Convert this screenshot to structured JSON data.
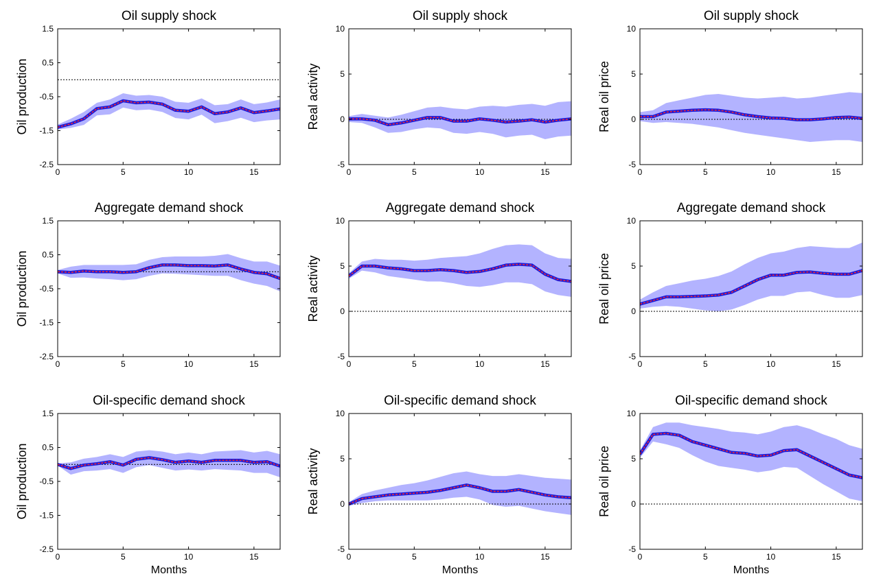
{
  "figure": {
    "type": "impulse-response-grid"
  },
  "colors": {
    "band": "#b3b3ff",
    "line_outer": "#1a1adb",
    "line_inner": "#ff2a2a",
    "axis": "#000000",
    "zero_line": "#000000"
  },
  "chart_data": [
    {
      "type": "area",
      "title": "Oil supply shock",
      "ylabel": "Oil production",
      "xlabel": "",
      "ylim": [
        -2.5,
        1.5
      ],
      "yticks": [
        "1.5",
        "0.5",
        "-0.5",
        "-1.5",
        "-2.5"
      ],
      "yticks_values": [
        1.5,
        0.5,
        -0.5,
        -1.5,
        -2.5
      ],
      "xlim": [
        0,
        17
      ],
      "xticks": [
        "0",
        "5",
        "10",
        "15"
      ],
      "xticks_values": [
        0,
        5,
        10,
        15
      ],
      "zero_line": 0,
      "x": [
        0,
        1,
        2,
        3,
        4,
        5,
        6,
        7,
        8,
        9,
        10,
        11,
        12,
        13,
        14,
        15,
        16,
        17
      ],
      "median": [
        -1.4,
        -1.3,
        -1.15,
        -0.85,
        -0.8,
        -0.62,
        -0.68,
        -0.66,
        -0.72,
        -0.9,
        -0.93,
        -0.8,
        -1.0,
        -0.95,
        -0.83,
        -0.97,
        -0.92,
        -0.86
      ],
      "upper": [
        -1.32,
        -1.15,
        -0.95,
        -0.68,
        -0.58,
        -0.4,
        -0.47,
        -0.45,
        -0.5,
        -0.65,
        -0.68,
        -0.55,
        -0.75,
        -0.72,
        -0.58,
        -0.72,
        -0.67,
        -0.58
      ],
      "lower": [
        -1.47,
        -1.42,
        -1.33,
        -1.05,
        -1.02,
        -0.82,
        -0.9,
        -0.88,
        -0.95,
        -1.13,
        -1.17,
        -1.03,
        -1.28,
        -1.22,
        -1.12,
        -1.25,
        -1.2,
        -1.17
      ]
    },
    {
      "type": "area",
      "title": "Oil supply shock",
      "ylabel": "Real activity",
      "xlabel": "",
      "ylim": [
        -5,
        10
      ],
      "yticks": [
        "10",
        "5",
        "0",
        "-5"
      ],
      "yticks_values": [
        10,
        5,
        0,
        -5
      ],
      "xlim": [
        0,
        17
      ],
      "xticks": [
        "0",
        "5",
        "10",
        "15"
      ],
      "xticks_values": [
        0,
        5,
        10,
        15
      ],
      "zero_line": 0,
      "x": [
        0,
        1,
        2,
        3,
        4,
        5,
        6,
        7,
        8,
        9,
        10,
        11,
        12,
        13,
        14,
        15,
        16,
        17
      ],
      "median": [
        0.05,
        0.05,
        -0.1,
        -0.6,
        -0.4,
        -0.1,
        0.2,
        0.2,
        -0.2,
        -0.2,
        0.05,
        -0.1,
        -0.3,
        -0.2,
        -0.05,
        -0.3,
        -0.1,
        0.05
      ],
      "upper": [
        0.35,
        0.6,
        0.4,
        0.2,
        0.5,
        0.9,
        1.3,
        1.4,
        1.2,
        1.1,
        1.4,
        1.5,
        1.4,
        1.6,
        1.7,
        1.5,
        1.9,
        2.0
      ],
      "lower": [
        -0.3,
        -0.4,
        -0.9,
        -1.5,
        -1.4,
        -1.1,
        -0.9,
        -1.0,
        -1.5,
        -1.6,
        -1.4,
        -1.6,
        -2.0,
        -1.8,
        -1.7,
        -2.2,
        -1.9,
        -1.8
      ]
    },
    {
      "type": "area",
      "title": "Oil supply shock",
      "ylabel": "Real oil price",
      "xlabel": "",
      "ylim": [
        -5,
        10
      ],
      "yticks": [
        "10",
        "5",
        "0",
        "-5"
      ],
      "yticks_values": [
        10,
        5,
        0,
        -5
      ],
      "xlim": [
        0,
        17
      ],
      "xticks": [
        "0",
        "5",
        "10",
        "15"
      ],
      "xticks_values": [
        0,
        5,
        10,
        15
      ],
      "zero_line": 0,
      "x": [
        0,
        1,
        2,
        3,
        4,
        5,
        6,
        7,
        8,
        9,
        10,
        11,
        12,
        13,
        14,
        15,
        16,
        17
      ],
      "median": [
        0.3,
        0.3,
        0.8,
        0.9,
        1.0,
        1.05,
        1.0,
        0.8,
        0.5,
        0.3,
        0.15,
        0.1,
        -0.05,
        -0.05,
        0.05,
        0.2,
        0.25,
        0.1
      ],
      "upper": [
        0.8,
        1.0,
        1.8,
        2.1,
        2.4,
        2.7,
        2.8,
        2.6,
        2.4,
        2.3,
        2.4,
        2.5,
        2.3,
        2.4,
        2.6,
        2.8,
        3.0,
        2.9
      ],
      "lower": [
        -0.2,
        -0.4,
        -0.3,
        -0.4,
        -0.5,
        -0.7,
        -0.9,
        -1.2,
        -1.5,
        -1.7,
        -1.9,
        -2.1,
        -2.3,
        -2.5,
        -2.4,
        -2.3,
        -2.3,
        -2.5
      ]
    },
    {
      "type": "area",
      "title": "Aggregate demand shock",
      "ylabel": "Oil production",
      "xlabel": "",
      "ylim": [
        -2.5,
        1.5
      ],
      "yticks": [
        "1.5",
        "0.5",
        "-0.5",
        "-1.5",
        "-2.5"
      ],
      "yticks_values": [
        1.5,
        0.5,
        -0.5,
        -1.5,
        -2.5
      ],
      "xlim": [
        0,
        17
      ],
      "xticks": [
        "0",
        "5",
        "10",
        "15"
      ],
      "xticks_values": [
        0,
        5,
        10,
        15
      ],
      "zero_line": 0,
      "x": [
        0,
        1,
        2,
        3,
        4,
        5,
        6,
        7,
        8,
        9,
        10,
        11,
        12,
        13,
        14,
        15,
        16,
        17
      ],
      "median": [
        0.0,
        -0.02,
        0.02,
        0.0,
        0.0,
        -0.02,
        0.0,
        0.12,
        0.2,
        0.2,
        0.18,
        0.18,
        0.17,
        0.2,
        0.08,
        -0.02,
        -0.06,
        -0.2
      ],
      "upper": [
        0.05,
        0.15,
        0.2,
        0.2,
        0.2,
        0.2,
        0.22,
        0.35,
        0.43,
        0.45,
        0.45,
        0.45,
        0.47,
        0.52,
        0.4,
        0.3,
        0.3,
        0.18
      ],
      "lower": [
        -0.05,
        -0.18,
        -0.17,
        -0.2,
        -0.22,
        -0.25,
        -0.22,
        -0.12,
        -0.05,
        -0.06,
        -0.08,
        -0.1,
        -0.12,
        -0.12,
        -0.25,
        -0.35,
        -0.42,
        -0.58
      ]
    },
    {
      "type": "area",
      "title": "Aggregate demand shock",
      "ylabel": "Real activity",
      "xlabel": "",
      "ylim": [
        -5,
        10
      ],
      "yticks": [
        "10",
        "5",
        "0",
        "-5"
      ],
      "yticks_values": [
        10,
        5,
        0,
        -5
      ],
      "xlim": [
        0,
        17
      ],
      "xticks": [
        "0",
        "5",
        "10",
        "15"
      ],
      "xticks_values": [
        0,
        5,
        10,
        15
      ],
      "zero_line": 0,
      "x": [
        0,
        1,
        2,
        3,
        4,
        5,
        6,
        7,
        8,
        9,
        10,
        11,
        12,
        13,
        14,
        15,
        16,
        17
      ],
      "median": [
        3.9,
        5.0,
        5.0,
        4.8,
        4.7,
        4.5,
        4.5,
        4.6,
        4.5,
        4.3,
        4.4,
        4.7,
        5.1,
        5.2,
        5.1,
        4.1,
        3.5,
        3.3
      ],
      "upper": [
        4.2,
        5.5,
        5.8,
        5.7,
        5.7,
        5.6,
        5.7,
        5.9,
        6.0,
        6.1,
        6.4,
        6.9,
        7.3,
        7.4,
        7.3,
        6.4,
        5.9,
        5.8
      ],
      "lower": [
        3.6,
        4.5,
        4.3,
        3.9,
        3.7,
        3.5,
        3.3,
        3.3,
        3.1,
        2.8,
        2.7,
        2.9,
        3.2,
        3.2,
        3.0,
        2.2,
        1.8,
        1.6
      ]
    },
    {
      "type": "area",
      "title": "Aggregate demand shock",
      "ylabel": "Real oil price",
      "xlabel": "",
      "ylim": [
        -5,
        10
      ],
      "yticks": [
        "10",
        "5",
        "0",
        "-5"
      ],
      "yticks_values": [
        10,
        5,
        0,
        -5
      ],
      "xlim": [
        0,
        17
      ],
      "xticks": [
        "0",
        "5",
        "10",
        "15"
      ],
      "xticks_values": [
        0,
        5,
        10,
        15
      ],
      "zero_line": 0,
      "x": [
        0,
        1,
        2,
        3,
        4,
        5,
        6,
        7,
        8,
        9,
        10,
        11,
        12,
        13,
        14,
        15,
        16,
        17
      ],
      "median": [
        0.8,
        1.2,
        1.6,
        1.6,
        1.65,
        1.7,
        1.8,
        2.1,
        2.8,
        3.5,
        4.0,
        4.0,
        4.3,
        4.35,
        4.2,
        4.1,
        4.1,
        4.5
      ],
      "upper": [
        1.3,
        2.1,
        2.8,
        3.1,
        3.4,
        3.6,
        3.9,
        4.4,
        5.2,
        5.9,
        6.4,
        6.6,
        7.0,
        7.2,
        7.1,
        7.0,
        7.0,
        7.6
      ],
      "lower": [
        0.3,
        0.5,
        0.6,
        0.5,
        0.3,
        0.1,
        0.0,
        0.2,
        0.7,
        1.3,
        1.7,
        1.7,
        2.1,
        2.2,
        1.8,
        1.5,
        1.5,
        1.8
      ]
    },
    {
      "type": "area",
      "title": "Oil-specific demand shock",
      "ylabel": "Oil production",
      "xlabel": "Months",
      "ylim": [
        -2.5,
        1.5
      ],
      "yticks": [
        "1.5",
        "0.5",
        "-0.5",
        "-1.5",
        "-2.5"
      ],
      "yticks_values": [
        1.5,
        0.5,
        -0.5,
        -1.5,
        -2.5
      ],
      "xlim": [
        0,
        17
      ],
      "xticks": [
        "0",
        "5",
        "10",
        "15"
      ],
      "xticks_values": [
        0,
        5,
        10,
        15
      ],
      "zero_line": 0,
      "x": [
        0,
        1,
        2,
        3,
        4,
        5,
        6,
        7,
        8,
        9,
        10,
        11,
        12,
        13,
        14,
        15,
        16,
        17
      ],
      "median": [
        0.0,
        -0.12,
        -0.02,
        0.02,
        0.08,
        -0.02,
        0.15,
        0.2,
        0.14,
        0.06,
        0.1,
        0.06,
        0.12,
        0.12,
        0.12,
        0.06,
        0.08,
        -0.05
      ],
      "upper": [
        0.03,
        0.06,
        0.17,
        0.22,
        0.3,
        0.22,
        0.38,
        0.42,
        0.38,
        0.3,
        0.35,
        0.3,
        0.38,
        0.4,
        0.42,
        0.35,
        0.4,
        0.3
      ],
      "lower": [
        -0.03,
        -0.3,
        -0.2,
        -0.18,
        -0.14,
        -0.25,
        -0.08,
        -0.02,
        -0.1,
        -0.18,
        -0.15,
        -0.18,
        -0.14,
        -0.16,
        -0.18,
        -0.25,
        -0.25,
        -0.38
      ]
    },
    {
      "type": "area",
      "title": "Oil-specific demand shock",
      "ylabel": "Real activity",
      "xlabel": "Months",
      "ylim": [
        -5,
        10
      ],
      "yticks": [
        "10",
        "5",
        "0",
        "-5"
      ],
      "yticks_values": [
        10,
        5,
        0,
        -5
      ],
      "xlim": [
        0,
        17
      ],
      "xticks": [
        "0",
        "5",
        "10",
        "15"
      ],
      "xticks_values": [
        0,
        5,
        10,
        15
      ],
      "zero_line": 0,
      "x": [
        0,
        1,
        2,
        3,
        4,
        5,
        6,
        7,
        8,
        9,
        10,
        11,
        12,
        13,
        14,
        15,
        16,
        17
      ],
      "median": [
        0.0,
        0.6,
        0.8,
        1.0,
        1.1,
        1.2,
        1.3,
        1.5,
        1.8,
        2.1,
        1.8,
        1.4,
        1.4,
        1.6,
        1.3,
        1.0,
        0.8,
        0.7
      ],
      "upper": [
        0.2,
        1.1,
        1.5,
        1.8,
        2.1,
        2.3,
        2.6,
        3.0,
        3.4,
        3.6,
        3.3,
        3.1,
        3.1,
        3.3,
        3.1,
        2.9,
        2.8,
        2.7
      ],
      "lower": [
        -0.2,
        0.1,
        0.3,
        0.4,
        0.4,
        0.4,
        0.4,
        0.5,
        0.7,
        0.8,
        0.5,
        -0.1,
        -0.3,
        -0.2,
        -0.5,
        -0.8,
        -1.0,
        -1.2
      ]
    },
    {
      "type": "area",
      "title": "Oil-specific demand shock",
      "ylabel": "Real oil price",
      "xlabel": "Months",
      "ylim": [
        -5,
        10
      ],
      "yticks": [
        "10",
        "5",
        "0",
        "-5"
      ],
      "yticks_values": [
        10,
        5,
        0,
        -5
      ],
      "xlim": [
        0,
        17
      ],
      "xticks": [
        "0",
        "5",
        "10",
        "15"
      ],
      "xticks_values": [
        0,
        5,
        10,
        15
      ],
      "zero_line": 0,
      "x": [
        0,
        1,
        2,
        3,
        4,
        5,
        6,
        7,
        8,
        9,
        10,
        11,
        12,
        13,
        14,
        15,
        16,
        17
      ],
      "median": [
        5.5,
        7.7,
        7.8,
        7.6,
        6.9,
        6.5,
        6.1,
        5.7,
        5.6,
        5.3,
        5.4,
        5.9,
        6.0,
        5.3,
        4.6,
        3.9,
        3.2,
        2.9
      ],
      "upper": [
        5.9,
        8.5,
        9.0,
        9.0,
        8.7,
        8.5,
        8.3,
        8.0,
        7.9,
        7.7,
        8.0,
        8.5,
        8.7,
        8.3,
        7.7,
        7.2,
        6.5,
        6.1
      ],
      "lower": [
        5.1,
        6.9,
        6.6,
        6.2,
        5.4,
        4.7,
        4.2,
        4.0,
        3.8,
        3.5,
        3.7,
        4.1,
        4.0,
        3.1,
        2.2,
        1.4,
        0.6,
        0.3
      ]
    }
  ]
}
